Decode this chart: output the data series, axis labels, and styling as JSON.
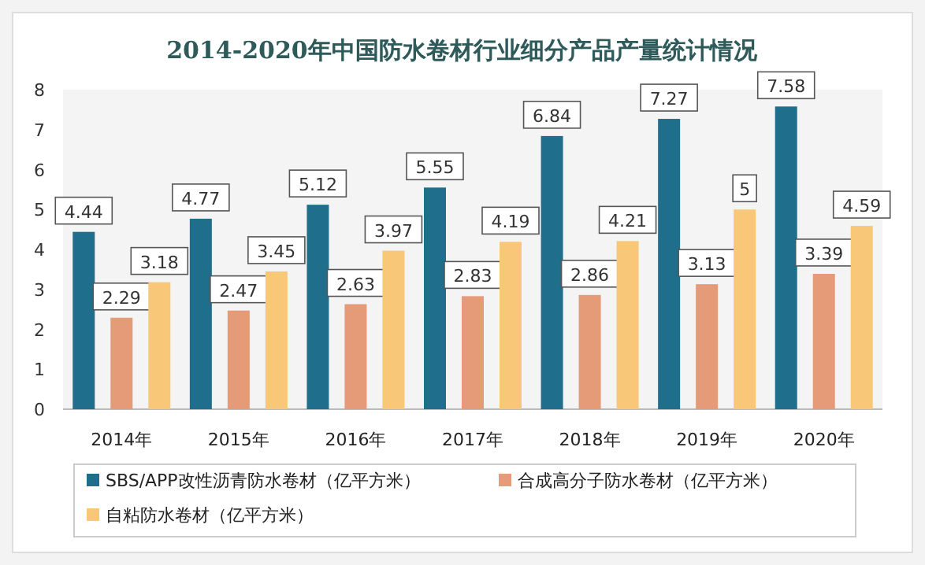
{
  "chart_data": {
    "type": "bar",
    "title": "2014-2020年中国防水卷材行业细分产品产量统计情况",
    "categories": [
      "2014年",
      "2015年",
      "2016年",
      "2017年",
      "2018年",
      "2019年",
      "2020年"
    ],
    "series": [
      {
        "name": "SBS/APP改性沥青防水卷材（亿平方米）",
        "color": "#1f6e8c",
        "values": [
          4.44,
          4.77,
          5.12,
          5.55,
          6.84,
          7.27,
          7.58
        ]
      },
      {
        "name": "合成高分子防水卷材（亿平方米）",
        "color": "#e59a78",
        "values": [
          2.29,
          2.47,
          2.63,
          2.83,
          2.86,
          3.13,
          3.39
        ]
      },
      {
        "name": "自粘防水卷材（亿平方米）",
        "color": "#f8c878",
        "values": [
          3.18,
          3.45,
          3.97,
          4.19,
          4.21,
          5,
          4.59
        ]
      }
    ],
    "ylim": [
      0,
      8
    ],
    "yticks": [
      0,
      1,
      2,
      3,
      4,
      5,
      6,
      7,
      8
    ],
    "data_labels": true,
    "legend": "bottom"
  }
}
